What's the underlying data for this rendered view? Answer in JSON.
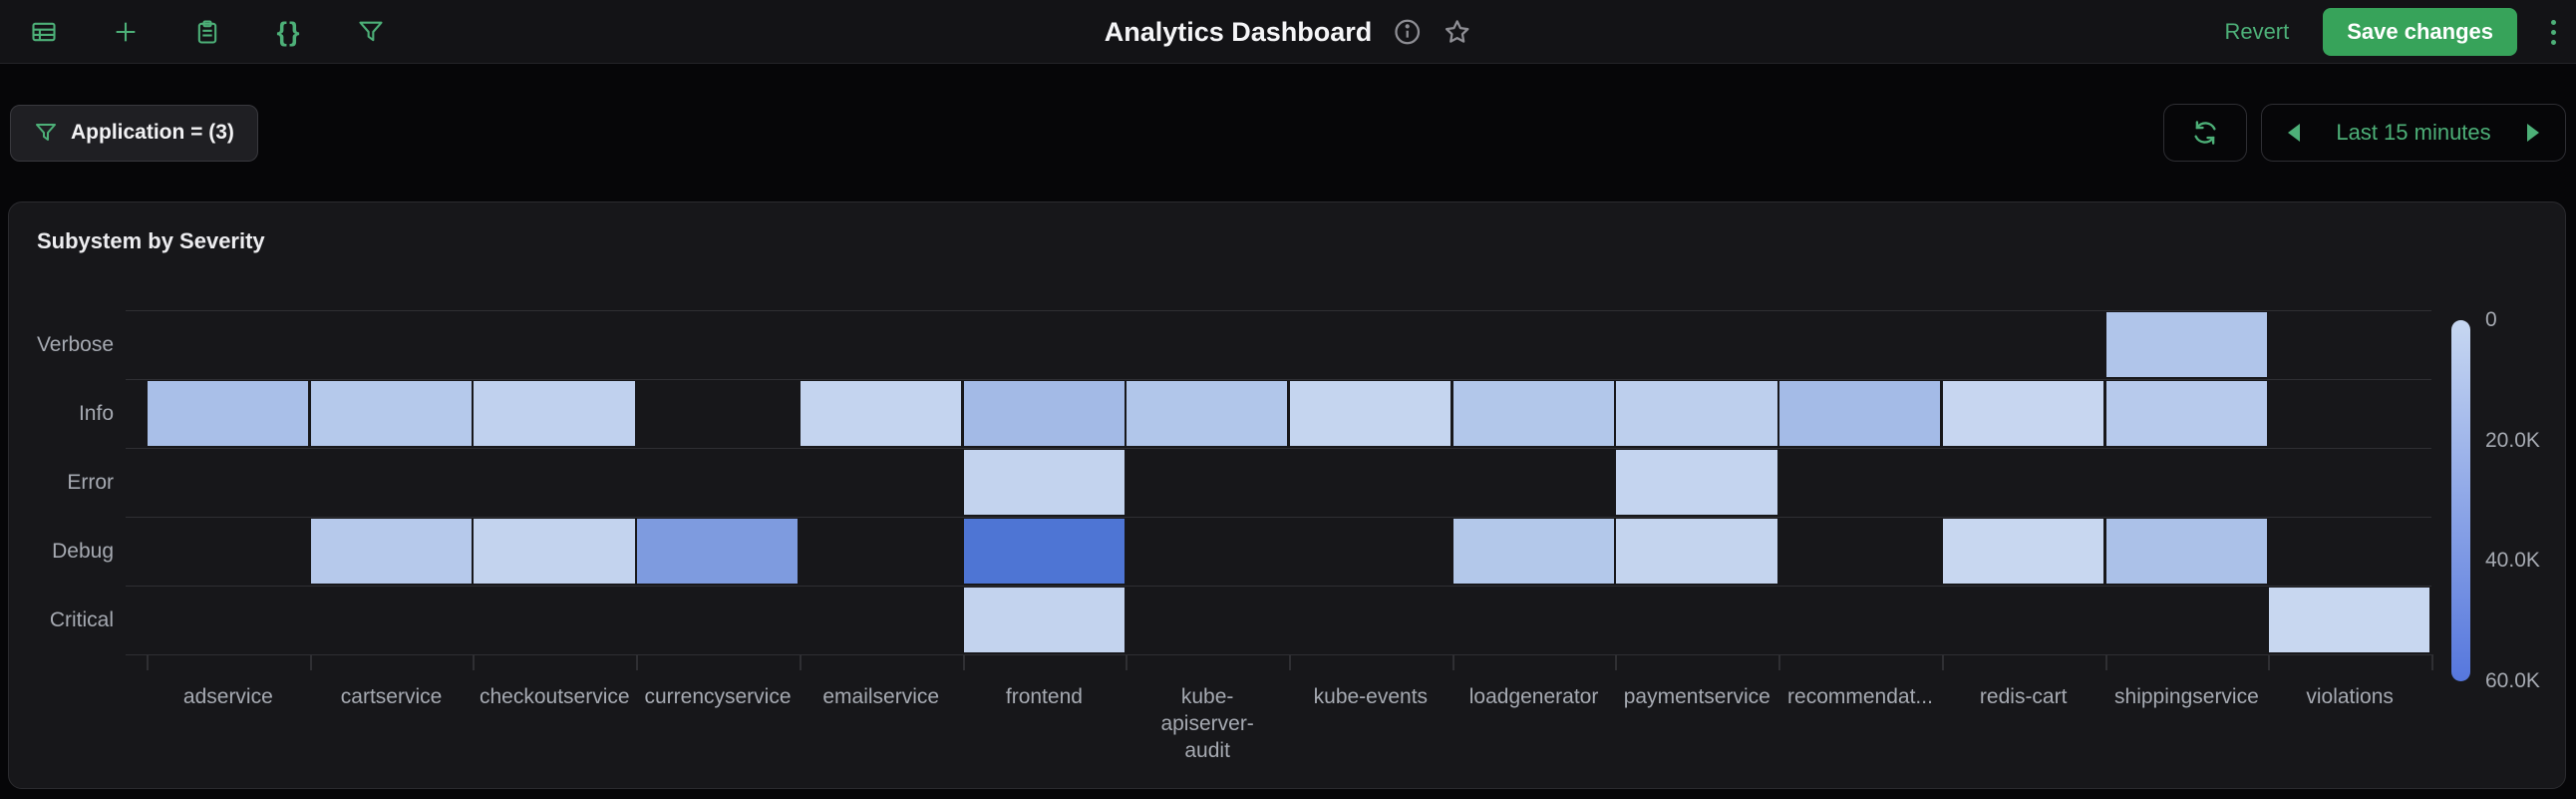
{
  "header": {
    "title": "Analytics Dashboard",
    "revert_label": "Revert",
    "save_label": "Save changes",
    "accent_color": "#4db078",
    "save_button_color": "#37a35a",
    "toolbar_icons": [
      "table-icon",
      "plus-icon",
      "clipboard-icon",
      "braces-icon",
      "filter-icon"
    ],
    "title_icons": [
      "info-icon",
      "star-icon"
    ],
    "icons": {
      "braces_glyph": "{}"
    }
  },
  "filter_bar": {
    "chip_label": "Application = (3)",
    "chip_icon": "filter-icon",
    "refresh_icon": "refresh-icon",
    "time_range": {
      "label": "Last 15 minutes",
      "prev_icon": "left-arrow-icon",
      "next_icon": "right-arrow-icon"
    }
  },
  "chart_data": {
    "type": "heatmap",
    "title": "Subystem by Severity",
    "rows": [
      "Verbose",
      "Info",
      "Error",
      "Debug",
      "Critical"
    ],
    "columns": [
      {
        "label": "adservice"
      },
      {
        "label": "cartservice"
      },
      {
        "label": "checkoutservice"
      },
      {
        "label": "currencyservice"
      },
      {
        "label": "emailservice"
      },
      {
        "label": "frontend"
      },
      {
        "label": "kube-apiserver-audit",
        "lines": [
          "kube-",
          "apiserver-",
          "audit"
        ]
      },
      {
        "label": "kube-events"
      },
      {
        "label": "loadgenerator"
      },
      {
        "label": "paymentservice"
      },
      {
        "label": "recommendat..."
      },
      {
        "label": "redis-cart"
      },
      {
        "label": "shippingservice"
      },
      {
        "label": "violations"
      }
    ],
    "colorbar": {
      "position": "right",
      "tick_labels": [
        "0",
        "20.0K",
        "40.0K",
        "60.0K"
      ],
      "min": 0,
      "max": 60000,
      "top_color": "#c7d7f1",
      "bottom_color": "#5677dd"
    },
    "cells": [
      {
        "row": "Verbose",
        "col": "shippingservice",
        "color": "#b0c5ea",
        "approx_value": 12000
      },
      {
        "row": "Info",
        "col": "adservice",
        "color": "#a9bfe8",
        "approx_value": 16000
      },
      {
        "row": "Info",
        "col": "cartservice",
        "color": "#b5c9eb",
        "approx_value": 9500
      },
      {
        "row": "Info",
        "col": "checkoutservice",
        "color": "#c0d1ee",
        "approx_value": 4000
      },
      {
        "row": "Info",
        "col": "emailservice",
        "color": "#c4d4ef",
        "approx_value": 1500
      },
      {
        "row": "Info",
        "col": "frontend",
        "color": "#a3bae6",
        "approx_value": 19000
      },
      {
        "row": "Info",
        "col": "kube-apiserver-audit",
        "color": "#b1c6ea",
        "approx_value": 11500
      },
      {
        "row": "Info",
        "col": "kube-events",
        "color": "#c5d5ef",
        "approx_value": 1000
      },
      {
        "row": "Info",
        "col": "loadgenerator",
        "color": "#b2c7ea",
        "approx_value": 11000
      },
      {
        "row": "Info",
        "col": "paymentservice",
        "color": "#bdcfed",
        "approx_value": 5500
      },
      {
        "row": "Info",
        "col": "recommendat...",
        "color": "#a4bbe7",
        "approx_value": 18500
      },
      {
        "row": "Info",
        "col": "redis-cart",
        "color": "#c7d6f0",
        "approx_value": 500
      },
      {
        "row": "Info",
        "col": "shippingservice",
        "color": "#b7caec",
        "approx_value": 8500
      },
      {
        "row": "Error",
        "col": "frontend",
        "color": "#c3d3ee",
        "approx_value": 2000
      },
      {
        "row": "Error",
        "col": "paymentservice",
        "color": "#c4d4ef",
        "approx_value": 1500
      },
      {
        "row": "Debug",
        "col": "cartservice",
        "color": "#b6c9eb",
        "approx_value": 9000
      },
      {
        "row": "Debug",
        "col": "checkoutservice",
        "color": "#c3d3ee",
        "approx_value": 2000
      },
      {
        "row": "Debug",
        "col": "currencyservice",
        "color": "#7e9bdf",
        "approx_value": 39000
      },
      {
        "row": "Debug",
        "col": "frontend",
        "color": "#4e75d4",
        "approx_value": 57000
      },
      {
        "row": "Debug",
        "col": "loadgenerator",
        "color": "#b3c8ea",
        "approx_value": 10500
      },
      {
        "row": "Debug",
        "col": "paymentservice",
        "color": "#c4d4ee",
        "approx_value": 1500
      },
      {
        "row": "Debug",
        "col": "redis-cart",
        "color": "#c8d7f0",
        "approx_value": 400
      },
      {
        "row": "Debug",
        "col": "shippingservice",
        "color": "#abc1e8",
        "approx_value": 15000
      },
      {
        "row": "Critical",
        "col": "frontend",
        "color": "#c3d3ee",
        "approx_value": 2000
      },
      {
        "row": "Critical",
        "col": "violations",
        "color": "#c8d7f0",
        "approx_value": 400
      }
    ]
  }
}
